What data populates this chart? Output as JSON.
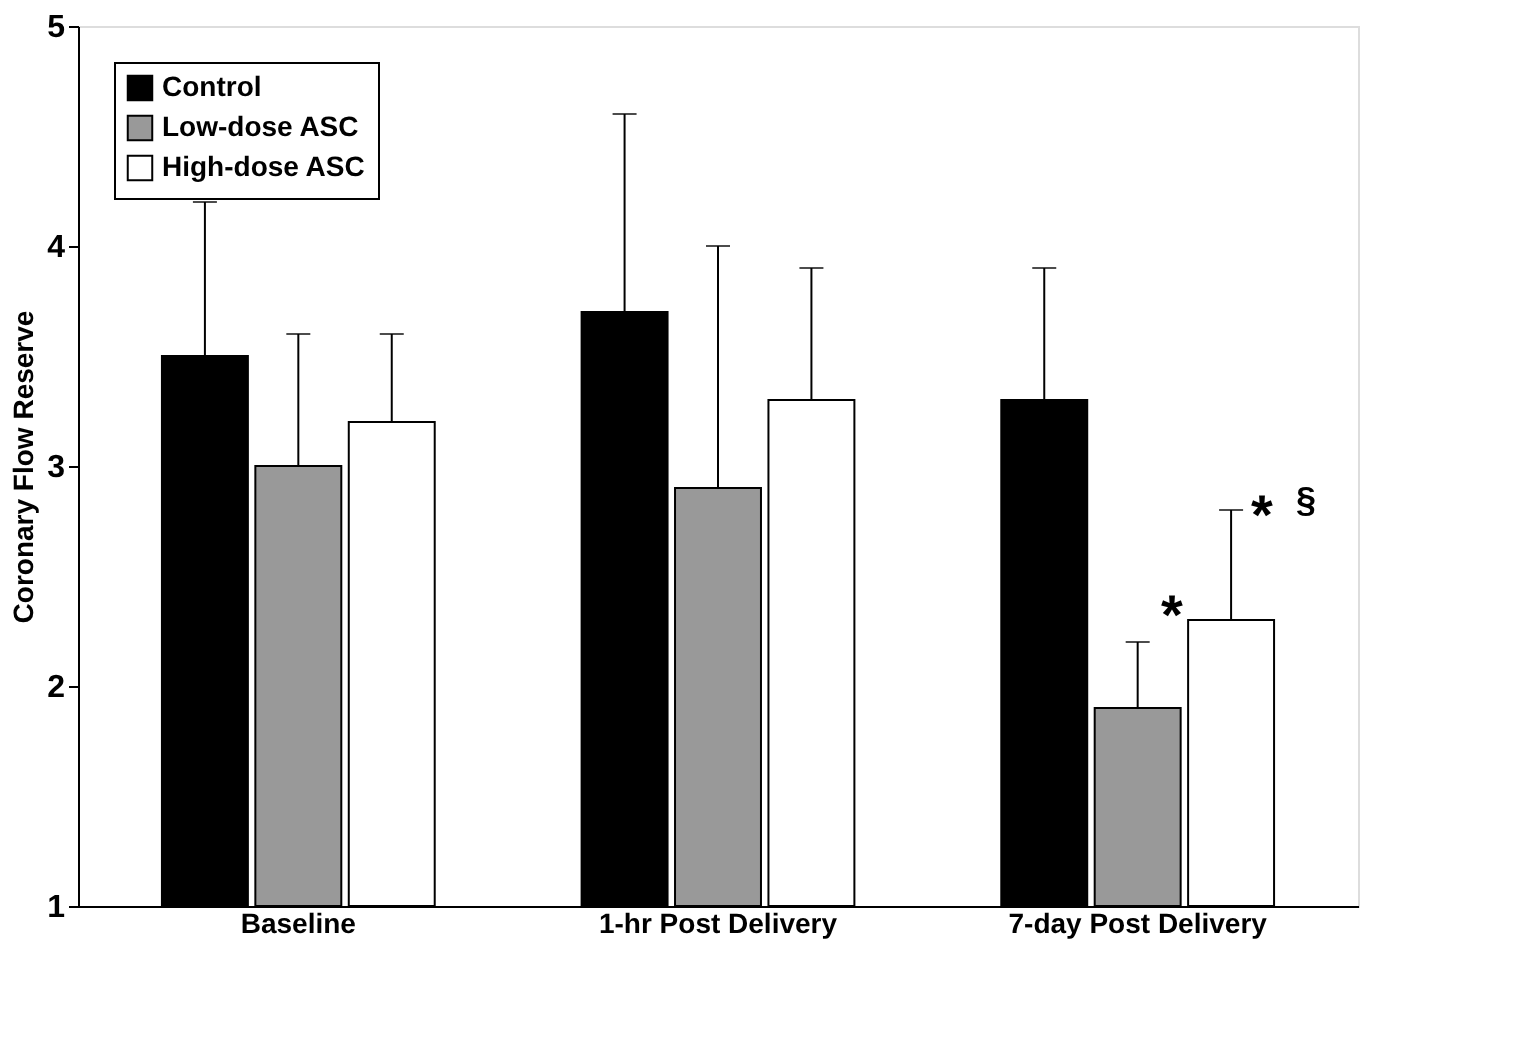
{
  "chart_data": {
    "type": "bar",
    "ylabel": "Coronary Flow Reserve",
    "categories": [
      "Baseline",
      "1-hr Post Delivery",
      "7-day Post Delivery"
    ],
    "series": [
      {
        "name": "Control",
        "color": "#000000",
        "values": [
          3.5,
          3.7,
          3.3
        ],
        "errors": [
          [
            3.5,
            4.2
          ],
          [
            3.7,
            4.6
          ],
          [
            3.3,
            3.9
          ]
        ]
      },
      {
        "name": "Low-dose ASC",
        "color": "#999999",
        "values": [
          3.0,
          2.9,
          1.9
        ],
        "errors": [
          [
            3.0,
            3.6
          ],
          [
            2.9,
            4.0
          ],
          [
            1.9,
            2.2
          ]
        ]
      },
      {
        "name": "High-dose ASC",
        "color": "#ffffff",
        "values": [
          3.2,
          3.3,
          2.3
        ],
        "errors": [
          [
            3.2,
            3.6
          ],
          [
            3.3,
            3.9
          ],
          [
            2.3,
            2.8
          ]
        ]
      }
    ],
    "annotations": [
      "*",
      "*",
      "§"
    ],
    "ylim": [
      1,
      5
    ],
    "yticks": [
      1,
      2,
      3,
      4,
      5
    ],
    "grid": false,
    "legend": "top left"
  }
}
